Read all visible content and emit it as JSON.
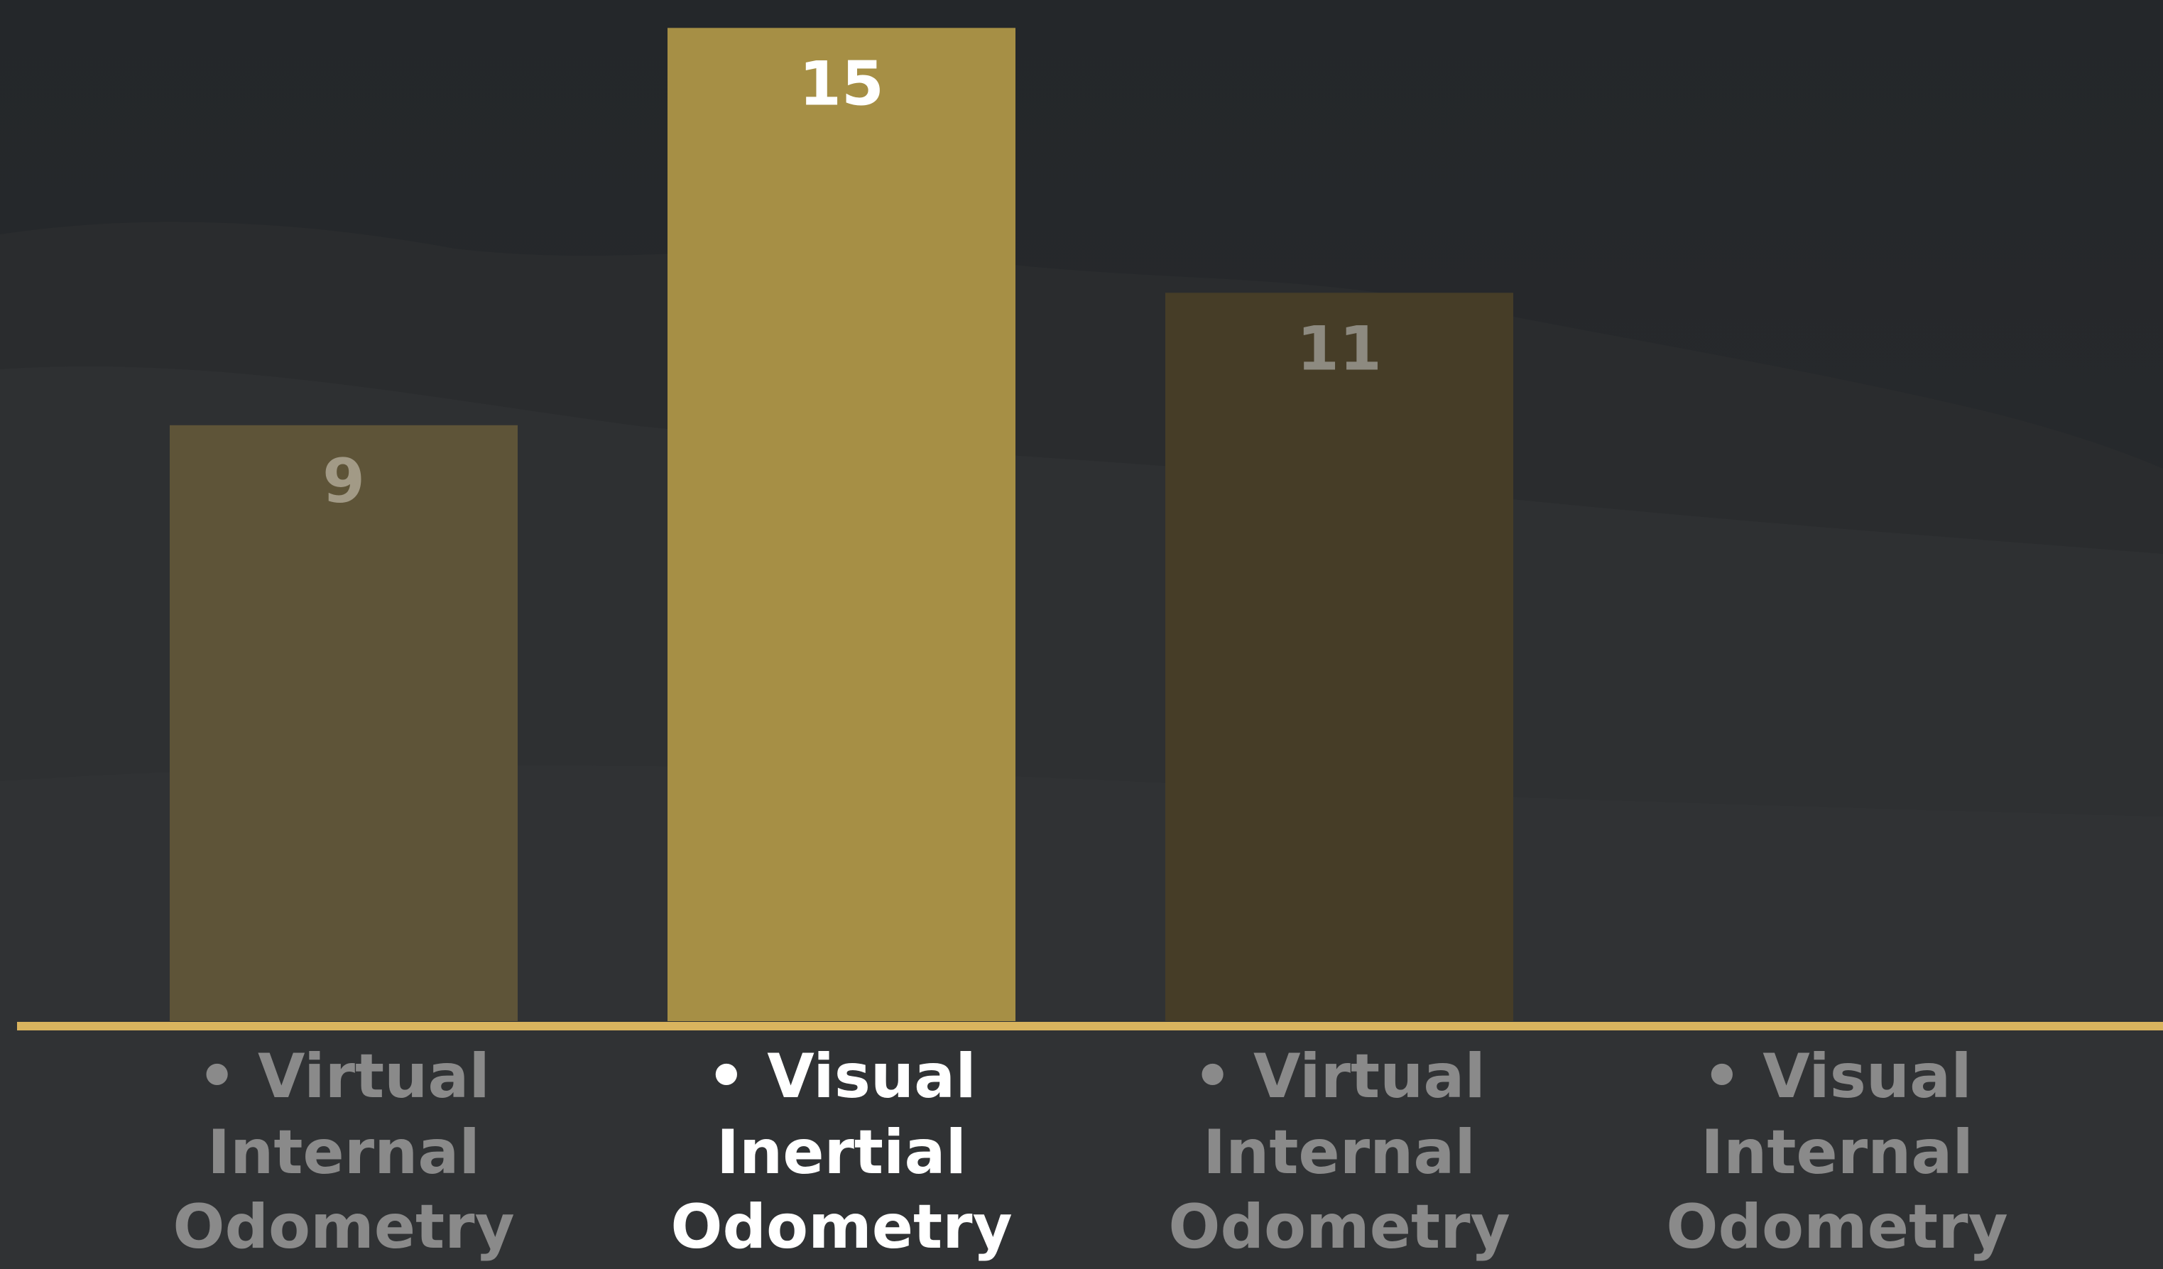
{
  "chart_data": {
    "type": "bar",
    "title": "",
    "xlabel": "",
    "ylabel": "",
    "categories": [
      [
        "• Virtual",
        "Internal",
        "Odometry"
      ],
      [
        "• Visual",
        "Inertial",
        "Odometry"
      ],
      [
        "• Virtual",
        "Internal",
        "Odometry"
      ],
      [
        "• Visual",
        "Internal",
        "Odometry"
      ]
    ],
    "values": [
      9,
      15,
      11,
      null
    ],
    "value_labels": [
      "9",
      "15",
      "11",
      ""
    ],
    "highlighted_index": 1,
    "ylim": [
      0,
      15.25
    ],
    "grid": false,
    "legend": "none"
  },
  "colors": {
    "background": "#25282b",
    "baseline": "#d9b45e",
    "bar_highlight": "#a68f45",
    "bar_dim_1": "#5e5438",
    "bar_dim_2": "#463d27",
    "label_highlight": "#ffffff",
    "label_dim": "#8a8a8a",
    "value_dim_1": "#a29a86",
    "value_dim_2": "#8d8a80"
  }
}
